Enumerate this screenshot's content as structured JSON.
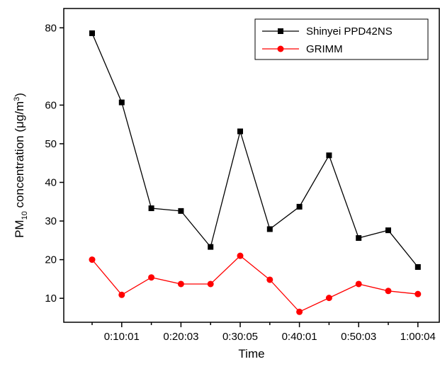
{
  "chart_data": {
    "type": "line",
    "x_label": "Time",
    "y_label_parts": [
      "PM",
      "10",
      " concentration (μg/m",
      "3",
      ")"
    ],
    "categories": [
      null,
      "0:10:01",
      null,
      "0:20:03",
      null,
      "0:30:05",
      null,
      "0:40:01",
      null,
      "0:50:03",
      null,
      "1:00:04"
    ],
    "series": [
      {
        "name": "Shinyei PPD42NS",
        "color": "#000000",
        "marker": "square",
        "values": [
          78.6,
          60.7,
          33.3,
          32.6,
          23.3,
          53.2,
          27.9,
          33.7,
          47,
          25.6,
          27.6,
          18.1
        ]
      },
      {
        "name": "GRIMM",
        "color": "#ff0000",
        "marker": "circle",
        "values": [
          20,
          10.9,
          15.4,
          13.7,
          13.7,
          21,
          14.8,
          6.5,
          10.1,
          13.7,
          11.9,
          11.1
        ]
      }
    ],
    "ylim": [
      3.8,
      85
    ],
    "yticks": [
      10,
      20,
      30,
      40,
      50,
      60,
      80
    ],
    "legend": "upper right"
  }
}
